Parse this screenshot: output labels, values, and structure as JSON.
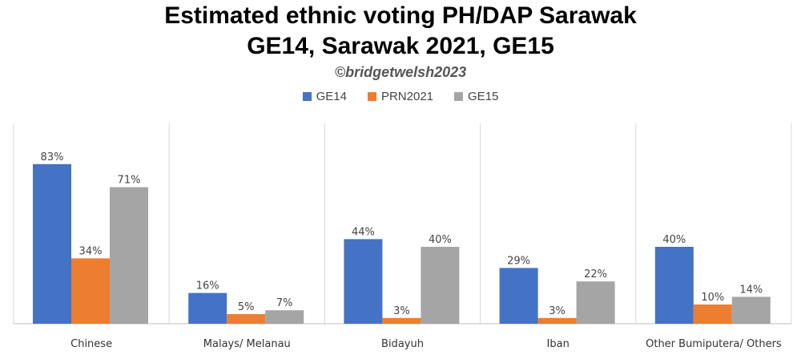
{
  "chart_data": {
    "type": "bar",
    "title_line1": "Estimated ethnic voting PH/DAP Sarawak",
    "title_line2": "GE14, Sarawak 2021, GE15",
    "subtitle": "©bridgetwelsh2023",
    "categories": [
      "Chinese",
      "Malays/ Melanau",
      "Bidayuh",
      "Iban",
      "Other Bumiputera/ Others"
    ],
    "series": [
      {
        "name": "GE14",
        "color": "#4472C4",
        "values": [
          83,
          16,
          44,
          29,
          40
        ],
        "labels": [
          "83%",
          "16%",
          "44%",
          "29%",
          "40%"
        ]
      },
      {
        "name": "PRN2021",
        "color": "#ED7D31",
        "values": [
          34,
          5,
          3,
          3,
          10
        ],
        "labels": [
          "34%",
          "5%",
          "3%",
          "3%",
          "10%"
        ]
      },
      {
        "name": "GE15",
        "color": "#A5A5A5",
        "values": [
          71,
          7,
          40,
          22,
          14
        ],
        "labels": [
          "71%",
          "7%",
          "40%",
          "22%",
          "14%"
        ]
      }
    ],
    "ylim": [
      0,
      85
    ],
    "legend_position": "top-center",
    "grid": false
  }
}
